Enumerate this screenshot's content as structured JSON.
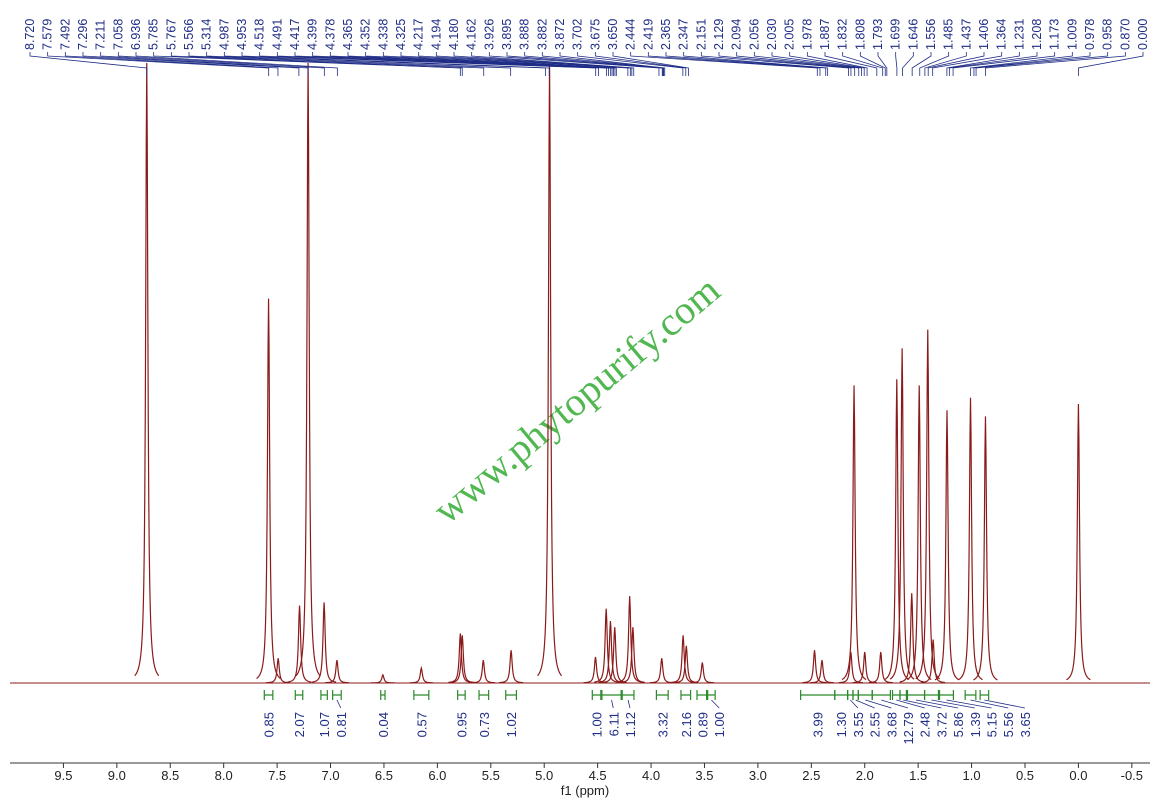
{
  "chart_data": {
    "type": "nmr",
    "x_label": "f1 (ppm)",
    "watermark": "www.phytopurify.com",
    "xlim": [
      10.0,
      -0.67
    ],
    "ylim": [
      0,
      100
    ],
    "xticks": [
      9.5,
      {
        "value": 9,
        "label": "9.0"
      },
      8.5,
      {
        "value": 8,
        "label": "8.0"
      },
      7.5,
      {
        "value": 7,
        "label": "7.0"
      },
      6.5,
      {
        "value": 6,
        "label": "6.0"
      },
      5.5,
      {
        "value": 5,
        "label": "5.0"
      },
      4.5,
      {
        "value": 4,
        "label": "4.0"
      },
      3.5,
      {
        "value": 3,
        "label": "3.0"
      },
      2.5,
      {
        "value": 2,
        "label": "2.0"
      },
      1.5,
      {
        "value": 1,
        "label": "1.0"
      },
      0.5,
      {
        "value": 0,
        "label": "0.0"
      },
      -0.5
    ],
    "color": "#8b1a1a",
    "peak_labels": [
      {
        "value": 8.72,
        "label": "8.720"
      },
      7.579,
      7.492,
      7.296,
      7.211,
      7.058,
      6.936,
      5.785,
      5.767,
      5.566,
      5.314,
      4.987,
      4.953,
      4.518,
      4.491,
      4.417,
      4.399,
      4.378,
      4.365,
      4.352,
      4.338,
      4.325,
      4.217,
      4.194,
      {
        "value": 4.18,
        "label": "4.180"
      },
      4.162,
      3.926,
      3.895,
      3.888,
      3.882,
      3.872,
      3.702,
      3.675,
      {
        "value": 3.65,
        "label": "3.650"
      },
      2.444,
      2.419,
      2.365,
      2.347,
      2.151,
      2.129,
      2.094,
      2.056,
      {
        "value": 2.03,
        "label": "2.030"
      },
      2.005,
      1.978,
      1.887,
      1.832,
      1.808,
      1.793,
      1.699,
      1.646,
      1.556,
      1.485,
      1.437,
      1.406,
      1.364,
      1.231,
      1.208,
      1.173,
      1.009,
      0.978,
      0.958,
      {
        "value": 0.87,
        "label": "0.870"
      },
      {
        "value": 0,
        "label": "0.000"
      }
    ],
    "peaks": {
      "x": [
        8.72,
        7.58,
        7.49,
        7.29,
        7.21,
        7.06,
        6.94,
        6.51,
        6.15,
        5.785,
        5.767,
        5.57,
        5.31,
        4.95,
        4.52,
        4.42,
        4.38,
        4.34,
        4.2,
        4.17,
        3.9,
        3.7,
        3.67,
        3.52,
        2.47,
        2.4,
        2.13,
        2.1,
        2.0,
        1.85,
        1.7,
        1.65,
        1.56,
        1.49,
        1.41,
        1.36,
        1.23,
        1.01,
        0.87,
        0.0
      ],
      "y": [
        100,
        62,
        4,
        12.5,
        100,
        13,
        3.7,
        1.3,
        2.4,
        8,
        7.7,
        3.7,
        5.3,
        100,
        4.2,
        12,
        10,
        9,
        14,
        9,
        4,
        7.7,
        6,
        3.3,
        5.3,
        3.7,
        5,
        48,
        5,
        5,
        49,
        54,
        14.5,
        48,
        57,
        7,
        44,
        46,
        43,
        45
      ]
    },
    "integrals": [
      {
        "value": 0.85,
        "range": [
          7.62,
          7.54
        ]
      },
      {
        "value": 2.07,
        "range": [
          7.33,
          7.26
        ]
      },
      {
        "value": 1.07,
        "range": [
          7.09,
          7.03
        ]
      },
      {
        "value": 0.81,
        "range": [
          6.98,
          6.9
        ]
      },
      {
        "value": 0.04,
        "range": [
          6.53,
          6.49
        ]
      },
      {
        "value": 0.57,
        "range": [
          6.22,
          6.08
        ]
      },
      {
        "value": 0.95,
        "range": [
          5.81,
          5.74
        ]
      },
      {
        "value": 0.73,
        "range": [
          5.61,
          5.52
        ]
      },
      {
        "value": 1.02,
        "range": [
          5.36,
          5.26
        ]
      },
      {
        "value": 1,
        "label": "1.00",
        "range": [
          4.55,
          4.47
        ]
      },
      {
        "value": 6.11,
        "range": [
          4.46,
          4.28
        ]
      },
      {
        "value": 1.12,
        "range": [
          4.27,
          4.16
        ]
      },
      {
        "value": 3.32,
        "range": [
          3.95,
          3.84
        ]
      },
      {
        "value": 2.16,
        "range": [
          3.72,
          3.63
        ]
      },
      {
        "value": 0.89,
        "range": [
          3.57,
          3.48
        ]
      },
      {
        "value": 1,
        "label": "1.00",
        "range": [
          3.47,
          3.4
        ]
      },
      {
        "value": 3.99,
        "range": [
          2.6,
          2.28
        ]
      },
      {
        "value": 1.3,
        "label": "1.30",
        "range": [
          2.28,
          2.16
        ]
      },
      {
        "value": 3.55,
        "range": [
          2.16,
          2.11
        ]
      },
      {
        "value": 2.55,
        "range": [
          2.11,
          2.06
        ]
      },
      {
        "value": 3.68,
        "range": [
          2.06,
          1.93
        ]
      },
      {
        "value": 12.79,
        "range": [
          1.93,
          1.76
        ]
      },
      {
        "value": 2.48,
        "range": [
          1.74,
          1.67
        ]
      },
      {
        "value": 3.72,
        "range": [
          1.67,
          1.61
        ]
      },
      {
        "value": 5.86,
        "range": [
          1.6,
          1.44
        ]
      },
      {
        "value": 1.39,
        "range": [
          1.44,
          1.31
        ]
      },
      {
        "value": 5.15,
        "range": [
          1.3,
          1.17
        ]
      },
      {
        "value": 5.56,
        "range": [
          1.06,
          0.96
        ]
      },
      {
        "value": 3.65,
        "range": [
          0.92,
          0.84
        ]
      }
    ]
  }
}
